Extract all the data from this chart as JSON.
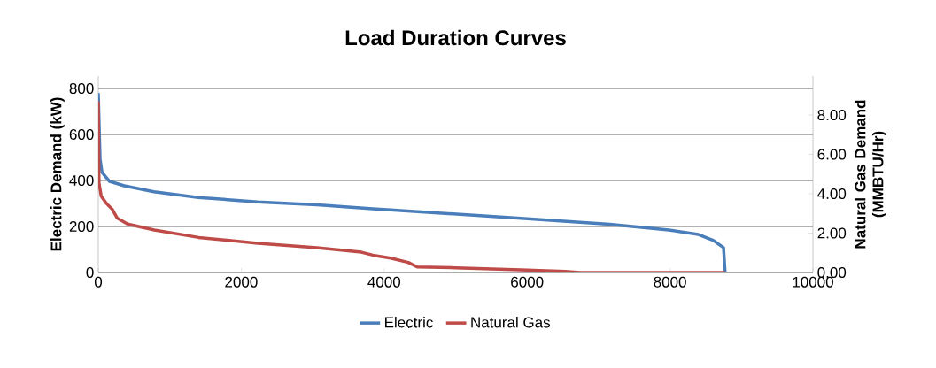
{
  "chart_data": {
    "type": "line",
    "title": "Load Duration Curves",
    "ylabel": "Electric Demand (kW)",
    "y2label": "Natural Gas Demand (MMBTU/Hr)",
    "xlim": [
      0,
      10000
    ],
    "xticks": [
      0,
      2000,
      4000,
      6000,
      8000,
      10000
    ],
    "ylim": [
      0,
      854
    ],
    "yticks": [
      0,
      200,
      400,
      600,
      800
    ],
    "y2lim": [
      0,
      9.98
    ],
    "y2ticks": [
      {
        "value": 0,
        "label": "0.00"
      },
      {
        "value": 2,
        "label": "2.00"
      },
      {
        "value": 4,
        "label": "4.00"
      },
      {
        "value": 6,
        "label": "6.00"
      },
      {
        "value": 8,
        "label": "8.00"
      }
    ],
    "grid": "y",
    "legend": "bottom",
    "marker": "none",
    "line_style": "solid",
    "series": [
      {
        "name": "Electric",
        "color": "#4a7ebb",
        "x": [
          0,
          25,
          53,
          157,
          364,
          778,
          1400,
          2230,
          3060,
          3842,
          4090,
          5913,
          7155,
          7983,
          8398,
          8604,
          8749,
          8770,
          8770
        ],
        "values": [
          780,
          492,
          435,
          396,
          377,
          351,
          326,
          307,
          294,
          277,
          272,
          236,
          210,
          185,
          165,
          140,
          108,
          5,
          0
        ]
      },
      {
        "name": "Natural Gas",
        "color": "#be4b48",
        "axis": "y2",
        "x": [
          0,
          10,
          41,
          115,
          198,
          265,
          410,
          784,
          1405,
          2233,
          3060,
          3682,
          3842,
          4090,
          4338,
          4463,
          5002,
          5913,
          6534,
          6739,
          8770
        ],
        "values": [
          8.7,
          4.55,
          3.88,
          3.5,
          3.2,
          2.76,
          2.46,
          2.16,
          1.78,
          1.48,
          1.26,
          1.03,
          0.88,
          0.73,
          0.51,
          0.28,
          0.24,
          0.13,
          0.06,
          0,
          0
        ]
      }
    ]
  }
}
